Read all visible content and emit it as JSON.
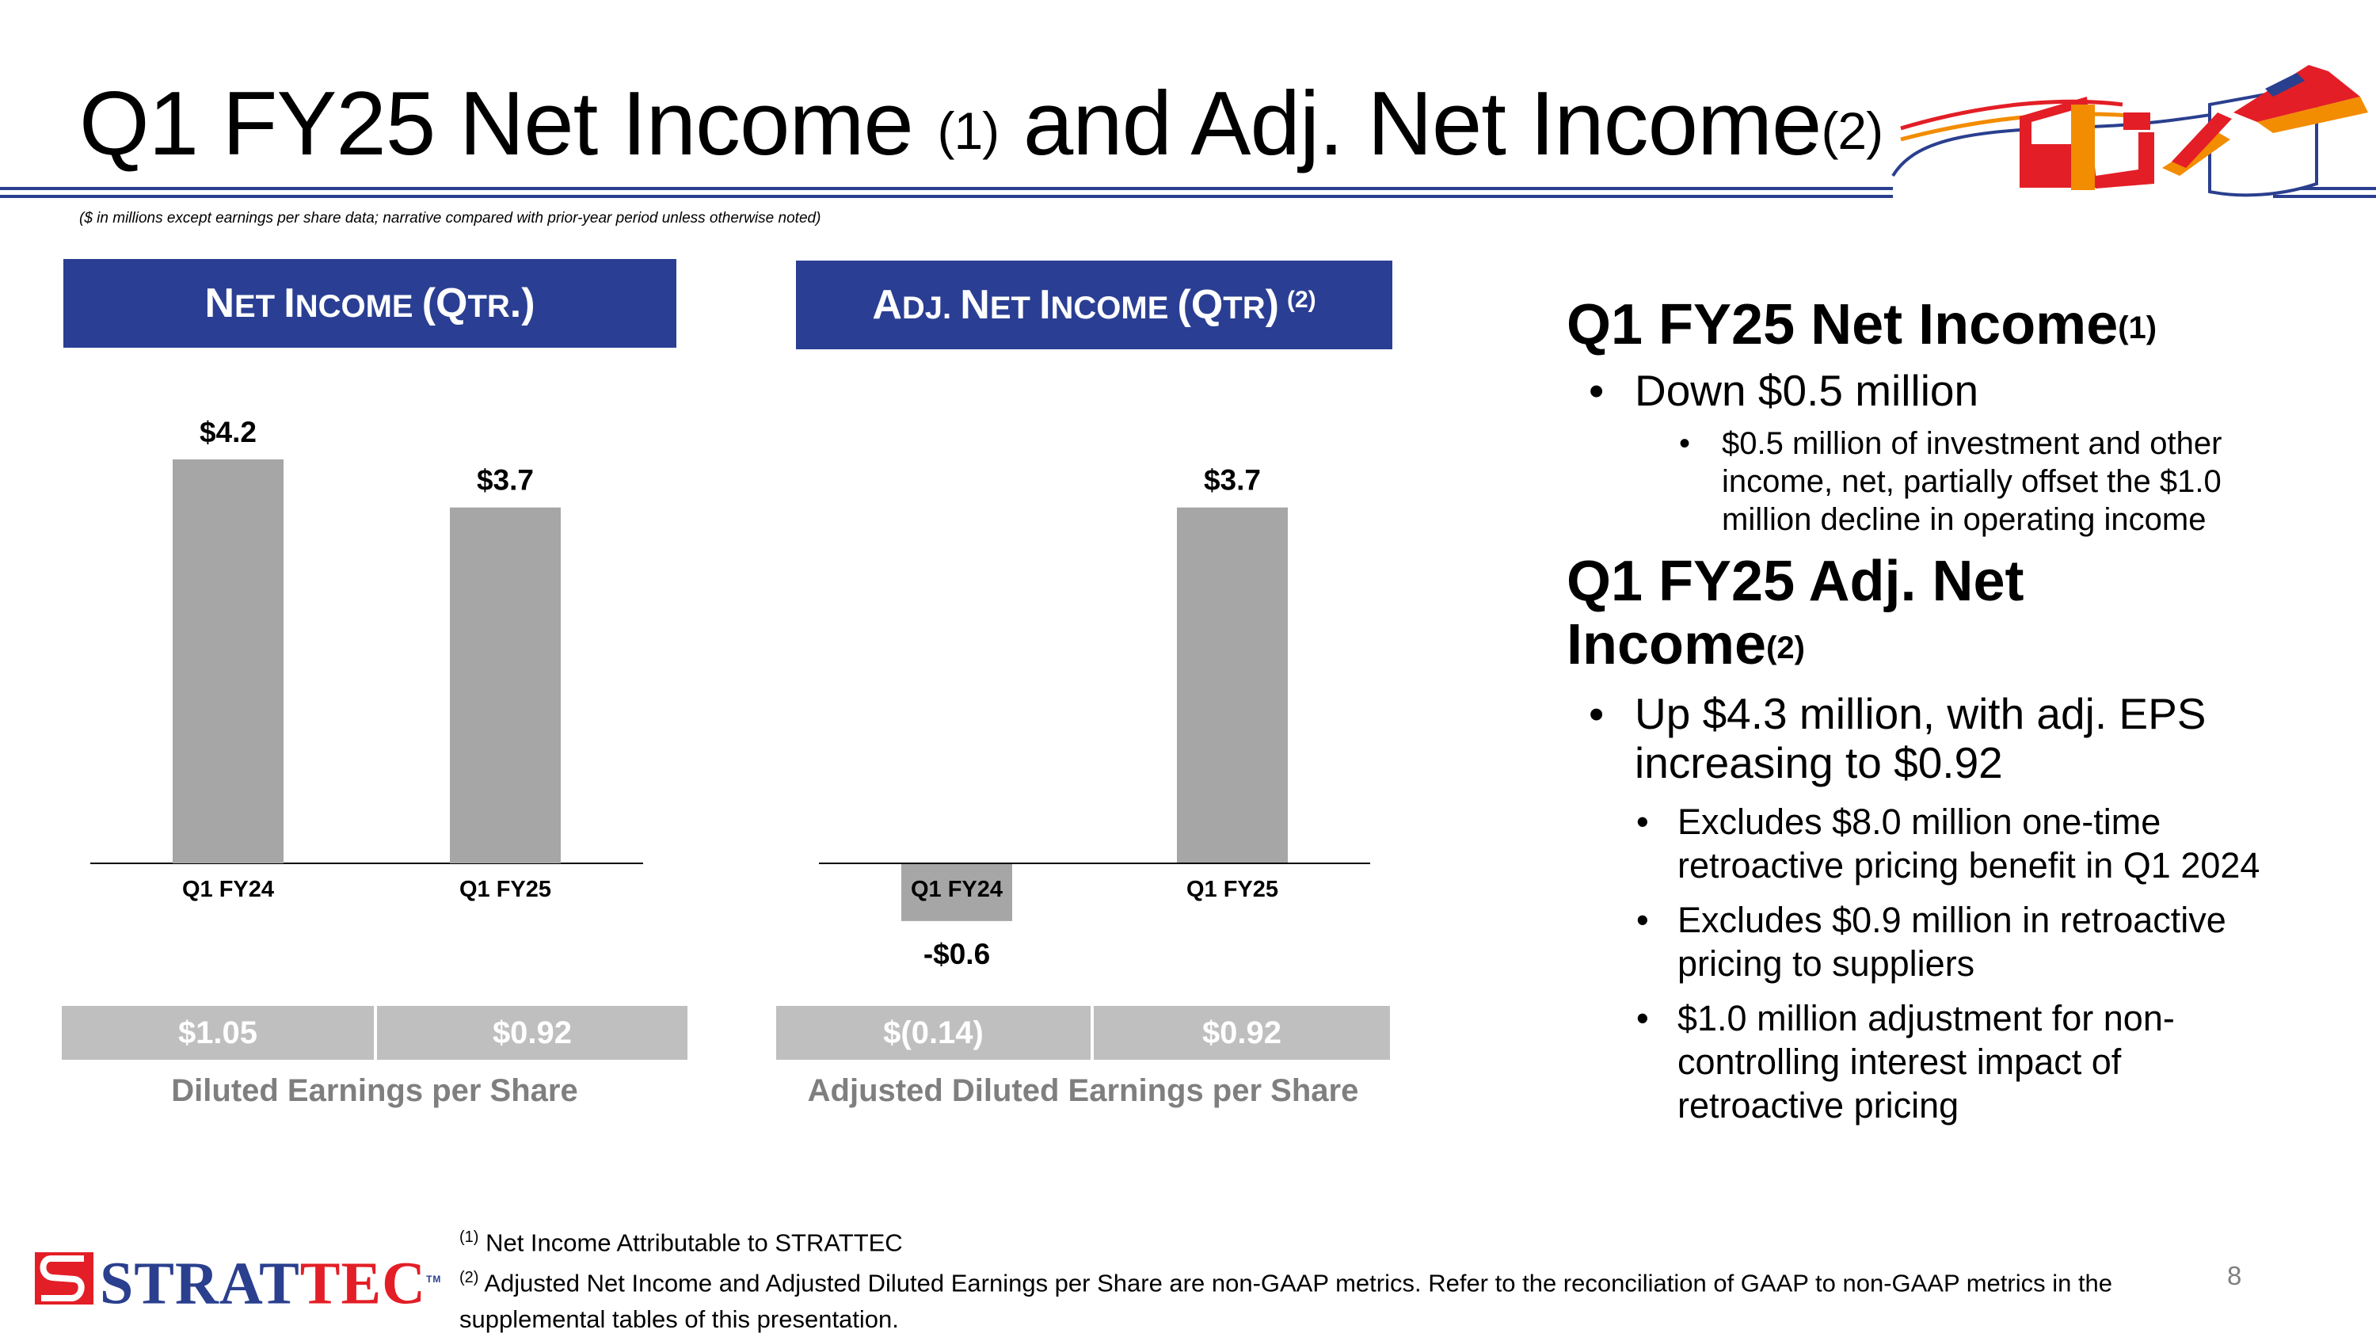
{
  "slide": {
    "title_part1": "Q1 FY25 Net Income ",
    "title_sup1": "(1)",
    "title_part2": " and Adj. Net Income",
    "title_sup2": "(2)",
    "subtitle": "($ in millions except earnings per share data; narrative compared with prior-year period unless otherwise noted)",
    "page_number": "8"
  },
  "colors": {
    "header_blue": "#2a3f93",
    "bar_gray": "#a6a6a6",
    "eps_cell": "#bfbfbf",
    "caption_gray": "#7f7f7f",
    "brand_red": "#e31e26",
    "brand_blue": "#2a3f8e"
  },
  "chart_data": [
    {
      "type": "bar",
      "header": "Net Income (Qtr.)",
      "header_sup": "",
      "categories": [
        "Q1 FY24",
        "Q1 FY25"
      ],
      "values": [
        4.2,
        3.7
      ],
      "value_labels": [
        "$4.2",
        "$3.7"
      ],
      "unit": "$ millions",
      "ylim": [
        0,
        4.2
      ],
      "eps_values": [
        "$1.05",
        "$0.92"
      ],
      "eps_caption": "Diluted Earnings per Share"
    },
    {
      "type": "bar",
      "header": "Adj. Net Income (Qtr)",
      "header_sup": "(2)",
      "categories": [
        "Q1 FY24",
        "Q1 FY25"
      ],
      "values": [
        -0.6,
        3.7
      ],
      "value_labels": [
        "-$0.6",
        "$3.7"
      ],
      "unit": "$ millions",
      "ylim": [
        -0.6,
        4.2
      ],
      "eps_values": [
        "$(0.14)",
        "$0.92"
      ],
      "eps_caption": "Adjusted Diluted Earnings per Share"
    }
  ],
  "right_panel": {
    "sections": [
      {
        "heading": "Q1 FY25 Net Income",
        "heading_sup": "(1)",
        "bullet": "Down $0.5 million",
        "sub_bullets": [
          "$0.5 million of investment and other income, net, partially offset the $1.0 million decline in operating income"
        ]
      },
      {
        "heading": "Q1 FY25 Adj. Net Income",
        "heading_sup": "(2)",
        "bullet": "Up $4.3 million, with adj. EPS increasing to $0.92",
        "sub_bullets": [
          "Excludes $8.0 million one-time retroactive pricing benefit in Q1 2024",
          "Excludes $0.9 million in retroactive pricing to suppliers",
          "$1.0 million adjustment for non-controlling interest impact of retroactive pricing"
        ]
      }
    ]
  },
  "footnotes": [
    {
      "mark": "(1)",
      "text": " Net Income Attributable to STRATTEC"
    },
    {
      "mark": "(2)",
      "text": " Adjusted Net Income and Adjusted Diluted Earnings per Share are non-GAAP metrics.  Refer to the reconciliation of GAAP to non-GAAP metrics in the supplemental tables of this presentation."
    }
  ],
  "logo": {
    "wordmark_part1": "STRAT",
    "wordmark_part2": "TEC",
    "tm": "TM"
  }
}
